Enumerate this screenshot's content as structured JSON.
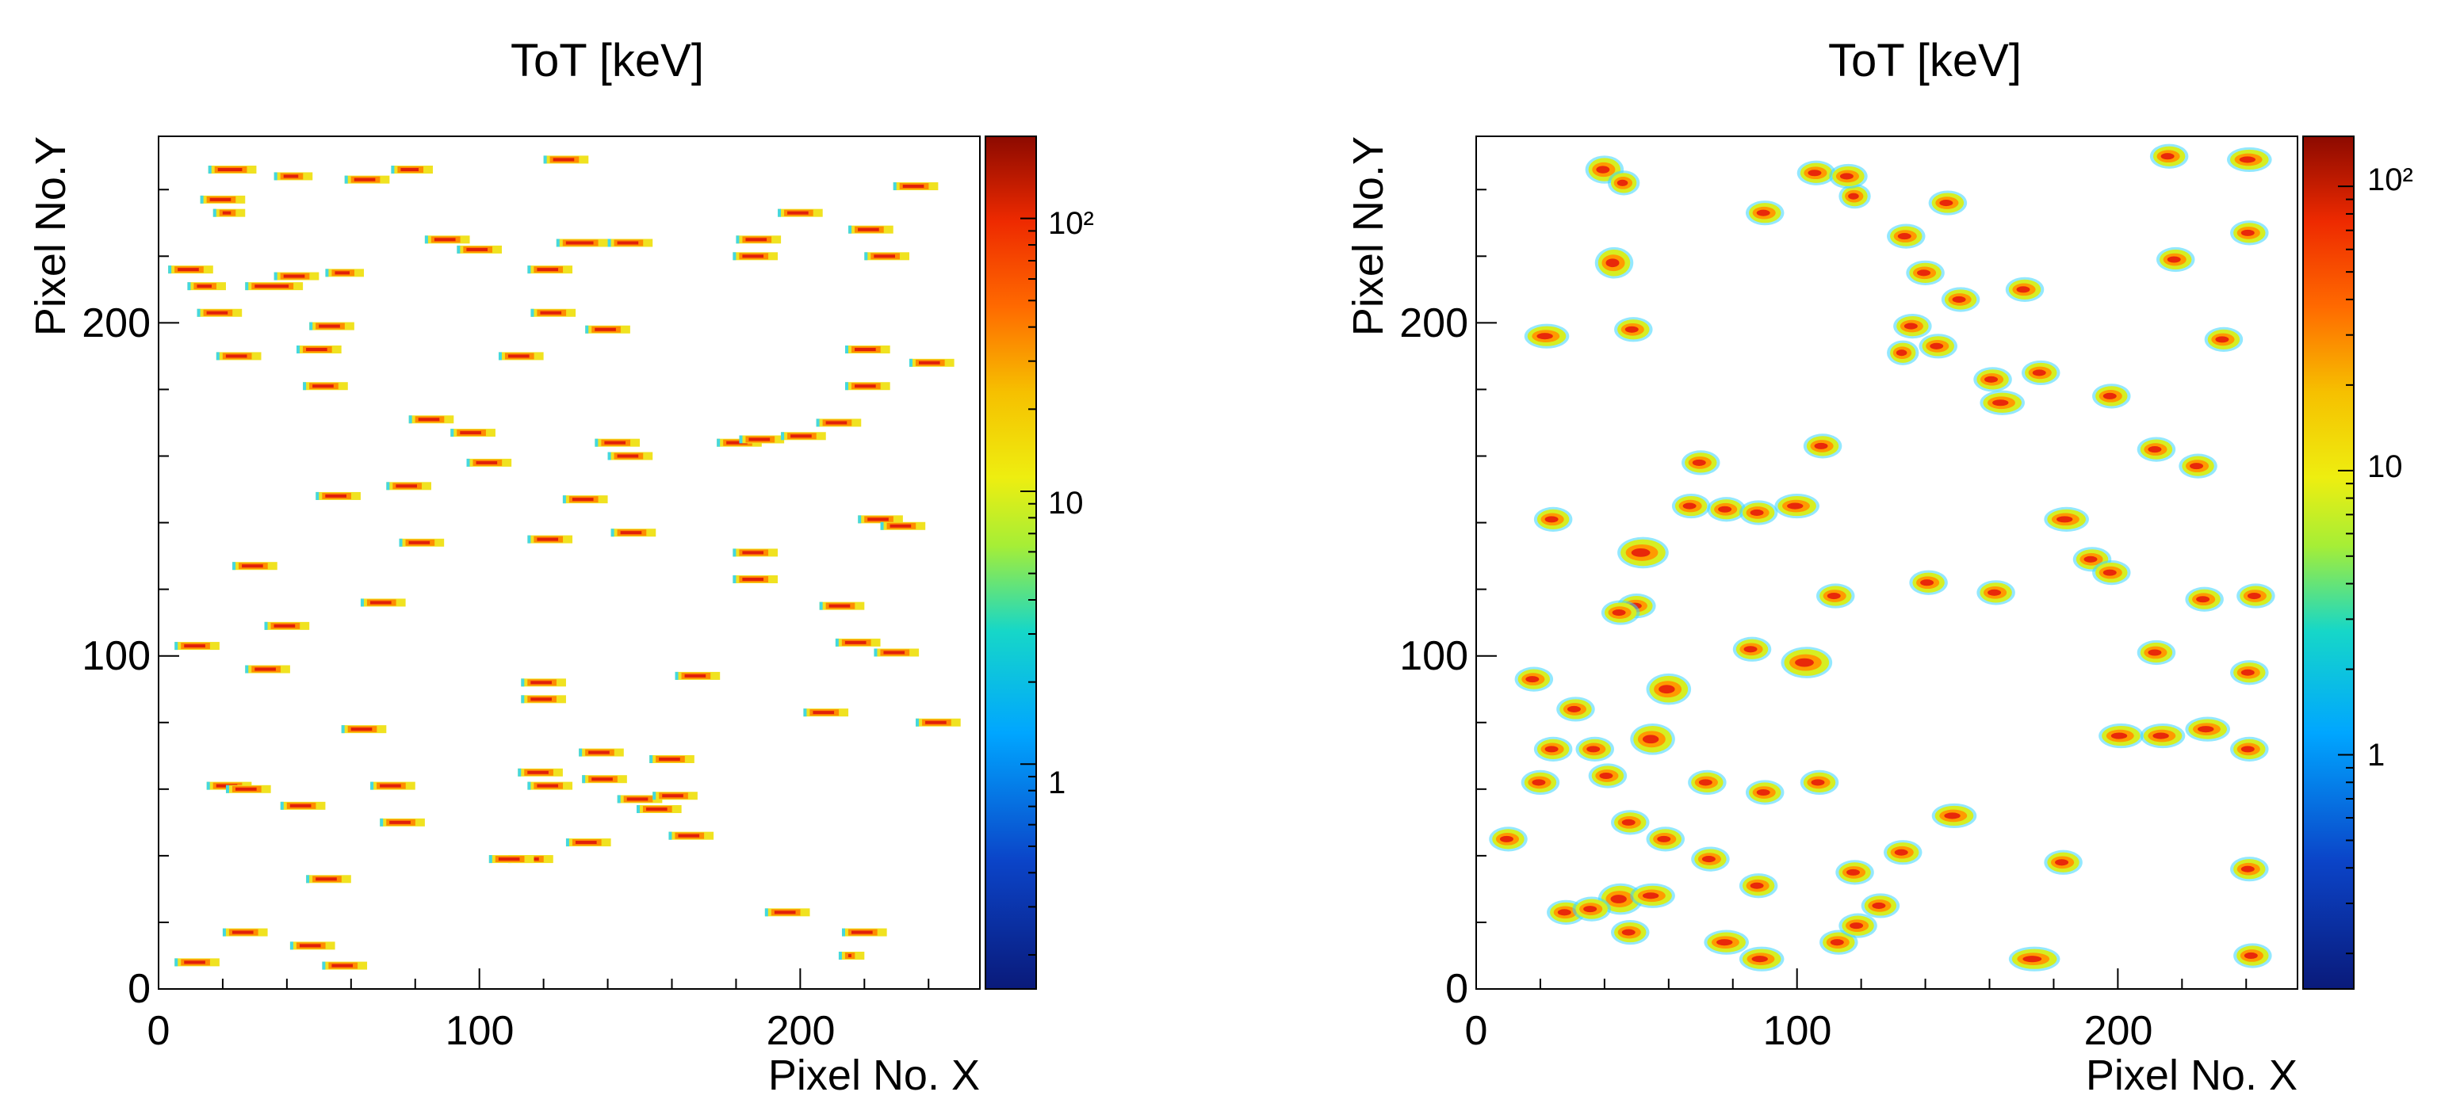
{
  "chart_data": [
    {
      "type": "heatmap",
      "panel": "left",
      "title": "ToT [keV]",
      "xlabel": "Pixel No. X",
      "ylabel": "Pixel No.Y",
      "xlim": [
        0,
        256
      ],
      "ylim": [
        0,
        256
      ],
      "xticks": [
        "0",
        "100",
        "200"
      ],
      "yticks": [
        "0",
        "100",
        "200"
      ],
      "colorbar": {
        "scale": "log",
        "range": [
          0.15,
          200
        ],
        "tick_labels": [
          "1",
          "10",
          "10²"
        ]
      },
      "cluster_shape": "track",
      "clusters": [
        [
          23,
          246,
          15,
          3
        ],
        [
          42,
          244,
          12,
          3
        ],
        [
          65,
          243,
          14,
          3
        ],
        [
          79,
          246,
          13,
          3
        ],
        [
          127,
          249,
          14,
          3
        ],
        [
          20,
          237,
          14,
          3
        ],
        [
          22,
          233,
          10,
          3
        ],
        [
          10,
          216,
          14,
          3
        ],
        [
          36,
          211,
          18,
          3
        ],
        [
          43,
          214,
          14,
          3
        ],
        [
          58,
          215,
          12,
          3
        ],
        [
          15,
          211,
          12,
          3
        ],
        [
          90,
          225,
          14,
          3
        ],
        [
          100,
          222,
          14,
          3
        ],
        [
          122,
          216,
          14,
          3
        ],
        [
          132,
          224,
          16,
          3
        ],
        [
          147,
          224,
          14,
          3
        ],
        [
          187,
          225,
          14,
          3
        ],
        [
          186,
          220,
          14,
          3
        ],
        [
          200,
          233,
          14,
          3
        ],
        [
          222,
          228,
          14,
          3
        ],
        [
          236,
          241,
          14,
          3
        ],
        [
          227,
          220,
          14,
          3
        ],
        [
          19,
          203,
          14,
          3
        ],
        [
          54,
          199,
          14,
          3
        ],
        [
          50,
          192,
          14,
          3
        ],
        [
          113,
          190,
          14,
          3
        ],
        [
          123,
          203,
          14,
          3
        ],
        [
          140,
          198,
          14,
          3
        ],
        [
          25,
          190,
          14,
          3
        ],
        [
          52,
          181,
          14,
          3
        ],
        [
          221,
          192,
          14,
          3
        ],
        [
          221,
          181,
          14,
          3
        ],
        [
          241,
          188,
          14,
          3
        ],
        [
          85,
          171,
          14,
          3
        ],
        [
          98,
          167,
          14,
          3
        ],
        [
          103,
          158,
          14,
          3
        ],
        [
          143,
          164,
          14,
          3
        ],
        [
          147,
          160,
          14,
          3
        ],
        [
          181,
          164,
          14,
          3
        ],
        [
          188,
          165,
          14,
          3
        ],
        [
          201,
          166,
          14,
          3
        ],
        [
          212,
          170,
          14,
          3
        ],
        [
          56,
          148,
          14,
          3
        ],
        [
          78,
          151,
          14,
          3
        ],
        [
          133,
          147,
          14,
          3
        ],
        [
          30,
          127,
          14,
          3
        ],
        [
          82,
          134,
          14,
          3
        ],
        [
          122,
          135,
          14,
          3
        ],
        [
          148,
          137,
          14,
          3
        ],
        [
          186,
          131,
          14,
          3
        ],
        [
          186,
          123,
          14,
          3
        ],
        [
          225,
          141,
          14,
          3
        ],
        [
          232,
          139,
          14,
          3
        ],
        [
          213,
          115,
          14,
          3
        ],
        [
          40,
          109,
          14,
          3
        ],
        [
          70,
          116,
          14,
          3
        ],
        [
          12,
          103,
          14,
          3
        ],
        [
          34,
          96,
          14,
          3
        ],
        [
          218,
          104,
          14,
          3
        ],
        [
          230,
          101,
          14,
          3
        ],
        [
          120,
          92,
          14,
          3
        ],
        [
          120,
          87,
          14,
          3
        ],
        [
          168,
          94,
          14,
          3
        ],
        [
          208,
          83,
          14,
          3
        ],
        [
          243,
          80,
          14,
          3
        ],
        [
          64,
          78,
          14,
          3
        ],
        [
          22,
          61,
          14,
          3
        ],
        [
          28,
          60,
          14,
          3
        ],
        [
          45,
          55,
          14,
          3
        ],
        [
          73,
          61,
          14,
          3
        ],
        [
          76,
          50,
          14,
          3
        ],
        [
          119,
          65,
          14,
          3
        ],
        [
          122,
          61,
          14,
          3
        ],
        [
          138,
          71,
          14,
          3
        ],
        [
          139,
          63,
          14,
          3
        ],
        [
          150,
          57,
          14,
          3
        ],
        [
          156,
          54,
          14,
          3
        ],
        [
          161,
          58,
          14,
          3
        ],
        [
          160,
          69,
          14,
          3
        ],
        [
          166,
          46,
          14,
          3
        ],
        [
          134,
          44,
          14,
          3
        ],
        [
          116,
          39,
          14,
          3
        ],
        [
          110,
          39,
          14,
          3
        ],
        [
          53,
          33,
          14,
          3
        ],
        [
          48,
          13,
          14,
          3
        ],
        [
          58,
          7,
          14,
          3
        ],
        [
          27,
          17,
          14,
          3
        ],
        [
          12,
          8,
          14,
          3
        ],
        [
          196,
          23,
          14,
          3
        ],
        [
          220,
          17,
          14,
          3
        ],
        [
          216,
          10,
          8,
          3
        ]
      ]
    },
    {
      "type": "heatmap",
      "panel": "right",
      "title": "ToT [keV]",
      "xlabel": "Pixel No. X",
      "ylabel": "Pixel No.Y",
      "xlim": [
        0,
        256
      ],
      "ylim": [
        0,
        256
      ],
      "xticks": [
        "0",
        "100",
        "200"
      ],
      "yticks": [
        "0",
        "100",
        "200"
      ],
      "colorbar": {
        "scale": "log",
        "range": [
          0.15,
          150
        ],
        "tick_labels": [
          "1",
          "10",
          "10²"
        ]
      },
      "cluster_shape": "blob",
      "clusters": [
        [
          40,
          246,
          10,
          7
        ],
        [
          46,
          242,
          8,
          6
        ],
        [
          106,
          245,
          10,
          6
        ],
        [
          118,
          238,
          8,
          6
        ],
        [
          116,
          244,
          10,
          6
        ],
        [
          90,
          233,
          10,
          6
        ],
        [
          147,
          236,
          10,
          6
        ],
        [
          134,
          226,
          10,
          6
        ],
        [
          43,
          218,
          10,
          8
        ],
        [
          49,
          198,
          10,
          6
        ],
        [
          22,
          196,
          12,
          6
        ],
        [
          140,
          215,
          10,
          6
        ],
        [
          151,
          207,
          10,
          6
        ],
        [
          144,
          193,
          10,
          6
        ],
        [
          136,
          199,
          10,
          6
        ],
        [
          133,
          191,
          8,
          6
        ],
        [
          161,
          183,
          10,
          6
        ],
        [
          164,
          176,
          12,
          6
        ],
        [
          176,
          185,
          10,
          6
        ],
        [
          171,
          210,
          10,
          6
        ],
        [
          216,
          250,
          10,
          6
        ],
        [
          241,
          249,
          12,
          6
        ],
        [
          218,
          219,
          10,
          6
        ],
        [
          241,
          227,
          10,
          6
        ],
        [
          233,
          195,
          10,
          6
        ],
        [
          198,
          178,
          10,
          6
        ],
        [
          212,
          162,
          10,
          6
        ],
        [
          225,
          157,
          10,
          6
        ],
        [
          70,
          158,
          10,
          6
        ],
        [
          108,
          163,
          10,
          6
        ],
        [
          24,
          141,
          10,
          6
        ],
        [
          52,
          131,
          14,
          8
        ],
        [
          67,
          145,
          10,
          6
        ],
        [
          78,
          144,
          10,
          6
        ],
        [
          88,
          143,
          10,
          6
        ],
        [
          100,
          145,
          12,
          6
        ],
        [
          112,
          118,
          10,
          6
        ],
        [
          141,
          122,
          10,
          6
        ],
        [
          162,
          119,
          10,
          6
        ],
        [
          184,
          141,
          12,
          6
        ],
        [
          192,
          129,
          10,
          6
        ],
        [
          198,
          125,
          10,
          6
        ],
        [
          227,
          117,
          10,
          6
        ],
        [
          243,
          118,
          10,
          6
        ],
        [
          50,
          115,
          10,
          6
        ],
        [
          45,
          113,
          10,
          6
        ],
        [
          86,
          102,
          10,
          6
        ],
        [
          103,
          98,
          14,
          8
        ],
        [
          212,
          101,
          10,
          6
        ],
        [
          241,
          95,
          10,
          6
        ],
        [
          18,
          93,
          10,
          6
        ],
        [
          31,
          84,
          10,
          6
        ],
        [
          60,
          90,
          12,
          8
        ],
        [
          55,
          75,
          12,
          8
        ],
        [
          24,
          72,
          10,
          6
        ],
        [
          37,
          72,
          10,
          6
        ],
        [
          20,
          62,
          10,
          6
        ],
        [
          41,
          64,
          10,
          6
        ],
        [
          72,
          62,
          10,
          6
        ],
        [
          90,
          59,
          10,
          6
        ],
        [
          107,
          62,
          10,
          6
        ],
        [
          48,
          50,
          10,
          6
        ],
        [
          59,
          45,
          10,
          6
        ],
        [
          10,
          45,
          10,
          6
        ],
        [
          149,
          52,
          12,
          6
        ],
        [
          133,
          41,
          10,
          6
        ],
        [
          118,
          35,
          10,
          6
        ],
        [
          73,
          39,
          10,
          6
        ],
        [
          88,
          31,
          10,
          6
        ],
        [
          126,
          25,
          10,
          6
        ],
        [
          28,
          23,
          10,
          6
        ],
        [
          45,
          27,
          12,
          8
        ],
        [
          55,
          28,
          12,
          6
        ],
        [
          36,
          24,
          10,
          6
        ],
        [
          48,
          17,
          10,
          6
        ],
        [
          78,
          14,
          12,
          6
        ],
        [
          89,
          9,
          12,
          6
        ],
        [
          113,
          14,
          10,
          6
        ],
        [
          119,
          19,
          10,
          6
        ],
        [
          174,
          9,
          14,
          6
        ],
        [
          183,
          38,
          10,
          6
        ],
        [
          201,
          76,
          12,
          6
        ],
        [
          214,
          76,
          12,
          6
        ],
        [
          228,
          78,
          12,
          6
        ],
        [
          241,
          72,
          10,
          6
        ],
        [
          241,
          36,
          10,
          6
        ],
        [
          242,
          10,
          10,
          6
        ]
      ]
    }
  ]
}
